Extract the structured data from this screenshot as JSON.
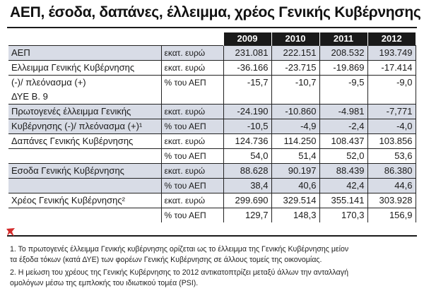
{
  "title": "ΑΕΠ, έσοδα, δαπάνες, έλλειμμα, χρέος Γενικής Κυβέρνησης",
  "headers": [
    "2009",
    "2010",
    "2011",
    "2012"
  ],
  "rows": [
    {
      "label": "ΑΕΠ",
      "unit": "εκατ. ευρώ",
      "values": [
        "231.081",
        "222.151",
        "208.532",
        "193.749"
      ]
    },
    {
      "label": "Ελλειμμα Γενικής Κυβέρνησης",
      "unit": "εκατ. ευρώ",
      "values": [
        "-36.166",
        "-23.715",
        "-19.869",
        "-17.414"
      ]
    },
    {
      "label": "(-)/ πλεόνασμα (+)",
      "unit": "% του ΑΕΠ",
      "values": [
        "-15,7",
        "-10,7",
        "-9,5",
        "-9,0"
      ]
    },
    {
      "label": "ΔΥΕ Β. 9",
      "unit": "",
      "values": [
        "",
        "",
        "",
        ""
      ]
    },
    {
      "label": "Πρωτογενές έλλειμμα Γενικής",
      "unit": "εκατ. ευρώ",
      "values": [
        "-24.190",
        "-10.860",
        "-4.981",
        "-7,771"
      ]
    },
    {
      "label": "Κυβέρνησης (-)/ πλεόνασμα (+)¹",
      "unit": "% του ΑΕΠ",
      "values": [
        "-10,5",
        "-4,9",
        "-2,4",
        "-4,0"
      ]
    },
    {
      "label": "Δαπάνες Γενικής Κυβέρνησης",
      "unit": "εκατ. ευρώ",
      "values": [
        "124.736",
        "114.250",
        "108.437",
        "103.856"
      ]
    },
    {
      "label": "",
      "unit": "% του ΑΕΠ",
      "values": [
        "54,0",
        "51,4",
        "52,0",
        "53,6"
      ]
    },
    {
      "label": "Εσοδα Γενικής Κυβέρνησης",
      "unit": "εκατ. ευρώ",
      "values": [
        "88.628",
        "90.197",
        "88.439",
        "86.380"
      ]
    },
    {
      "label": "",
      "unit": "% του ΑΕΠ",
      "values": [
        "38,4",
        "40,6",
        "42,4",
        "44,6"
      ]
    },
    {
      "label": "Χρέος Γενικής Κυβέρνησης²",
      "unit": "εκατ. ευρώ",
      "values": [
        "299.690",
        "329.514",
        "355.141",
        "303.928"
      ]
    },
    {
      "label": "",
      "unit": "% του ΑΕΠ",
      "values": [
        "129,7",
        "148,3",
        "170,3",
        "156,9"
      ]
    }
  ],
  "footnotes": [
    "1. Το πρωτογενές έλλειμμα Γενικής κυβέρνησης ορίζεται ως το έλλειμμα της Γενικής Κυβέρνησης μείον",
    "τα έξοδα τόκων (κατά ΔΥΕ) των φορέων Γενικής Κυβέρνησης σε άλλους τομείς της οικονομίας.",
    "2. Η μείωση του χρέους της Γενικής Κυβέρνησης το 2012 αντικατοπτρίζει μεταξύ άλλων την ανταλλαγή",
    "ομολόγων μέσω της εμπλοκής του ιδιωτικού τομέα (PSI)."
  ],
  "colors": {
    "header_bg": "#1a1a1a",
    "shade": "#d8dce6",
    "logo": "#d42a2a"
  },
  "logo_icon": "red-logo-mark"
}
